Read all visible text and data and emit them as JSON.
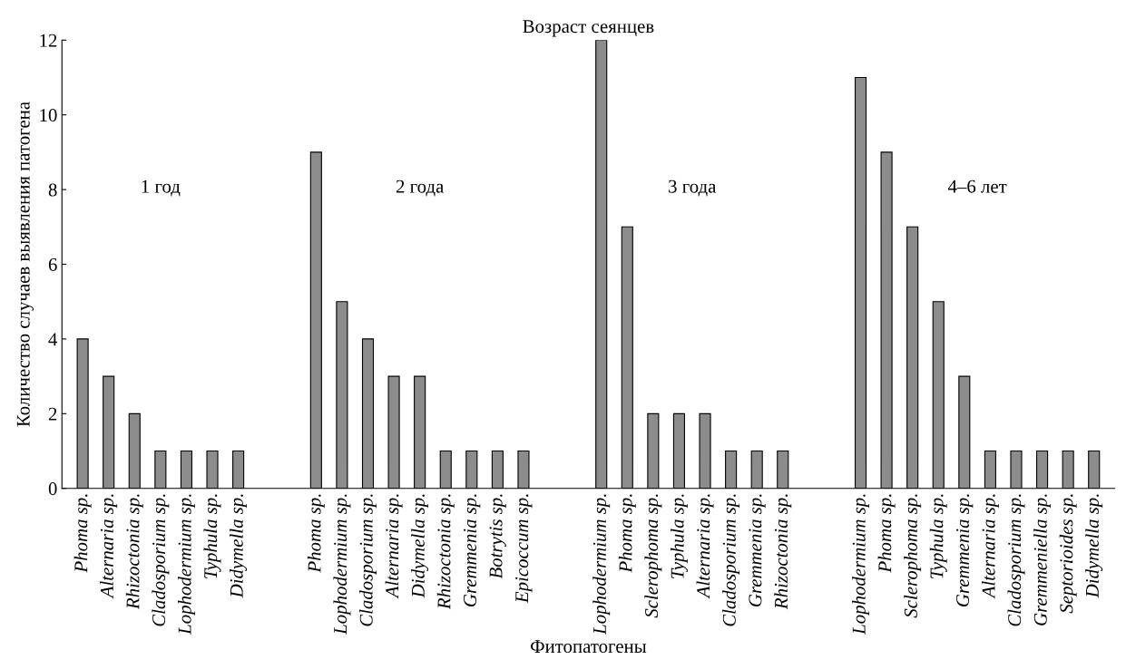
{
  "chart_data": {
    "type": "bar",
    "title": "Возраст сеянцев",
    "xlabel": "Фитопатогены",
    "ylabel": "Количество случаев выявления патогена",
    "categories": [
      "Phoma sp.",
      "Alternaria sp.",
      "Rhizoctonia sp.",
      "Cladosporium sp.",
      "Lophodermium sp.",
      "Typhula sp.",
      "Didymella sp.",
      null,
      null,
      "Phoma sp.",
      "Lophodermium sp.",
      "Cladosporium sp.",
      "Alternaria sp.",
      "Didymella sp.",
      "Rhizoctonia sp.",
      "Gremmenia sp.",
      "Botrytis sp.",
      "Epicoccum sp.",
      null,
      null,
      "Lophodermium sp.",
      "Phoma sp.",
      "Sclerophoma sp.",
      "Typhula sp.",
      "Alternaria sp.",
      "Cladosporium sp.",
      "Gremmenia sp.",
      "Rhizoctonia sp.",
      null,
      null,
      "Lophodermium sp.",
      "Phoma sp.",
      "Sclerophoma sp.",
      "Typhula sp.",
      "Gremmenia sp.",
      "Alternaria sp.",
      "Cladosporium sp.",
      "Gremmeniella sp.",
      "Septorioides sp.",
      "Didymella sp."
    ],
    "values": [
      4,
      3,
      2,
      1,
      1,
      1,
      1,
      null,
      null,
      9,
      5,
      4,
      3,
      3,
      1,
      1,
      1,
      1,
      null,
      null,
      12,
      7,
      2,
      2,
      2,
      1,
      1,
      1,
      null,
      null,
      11,
      9,
      7,
      5,
      3,
      1,
      1,
      1,
      1,
      1
    ],
    "color": "#8c8c8c",
    "annotations": [
      "1 год",
      "2 года",
      "3 года",
      "4–6 лет"
    ],
    "ylim": [
      0,
      12
    ],
    "yticks": [
      0,
      2,
      4,
      6,
      8,
      10,
      12
    ],
    "grid": false,
    "legend": false
  }
}
